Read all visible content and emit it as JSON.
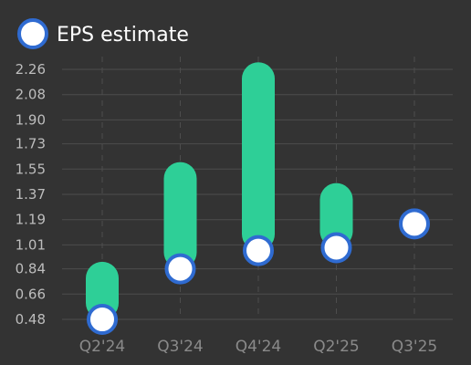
{
  "chart_data": {
    "type": "bar",
    "legend": {
      "label": "EPS estimate",
      "position": "top-left"
    },
    "categories": [
      "Q2'24",
      "Q3'24",
      "Q4'24",
      "Q2'25",
      "Q3'25"
    ],
    "y_ticks": [
      "0.48",
      "0.66",
      "0.84",
      "1.01",
      "1.19",
      "1.37",
      "1.55",
      "1.73",
      "1.90",
      "2.08",
      "2.26"
    ],
    "ylim": [
      0.48,
      2.26
    ],
    "series": [
      {
        "name": "EPS estimate",
        "values": [
          0.48,
          0.84,
          0.97,
          0.99,
          1.16
        ]
      }
    ],
    "bars_high": [
      0.89,
      1.6,
      2.31,
      1.45,
      null
    ],
    "grid": "horizontal solid, vertical dashed",
    "colors": {
      "background": "#333333",
      "bar": "#2ecf97",
      "marker_fill": "#ffffff",
      "marker_stroke": "#2f6bd1",
      "grid": "#4d4d4d",
      "ytick": "#bdbdbd",
      "xtick": "#8a8a8a"
    }
  }
}
